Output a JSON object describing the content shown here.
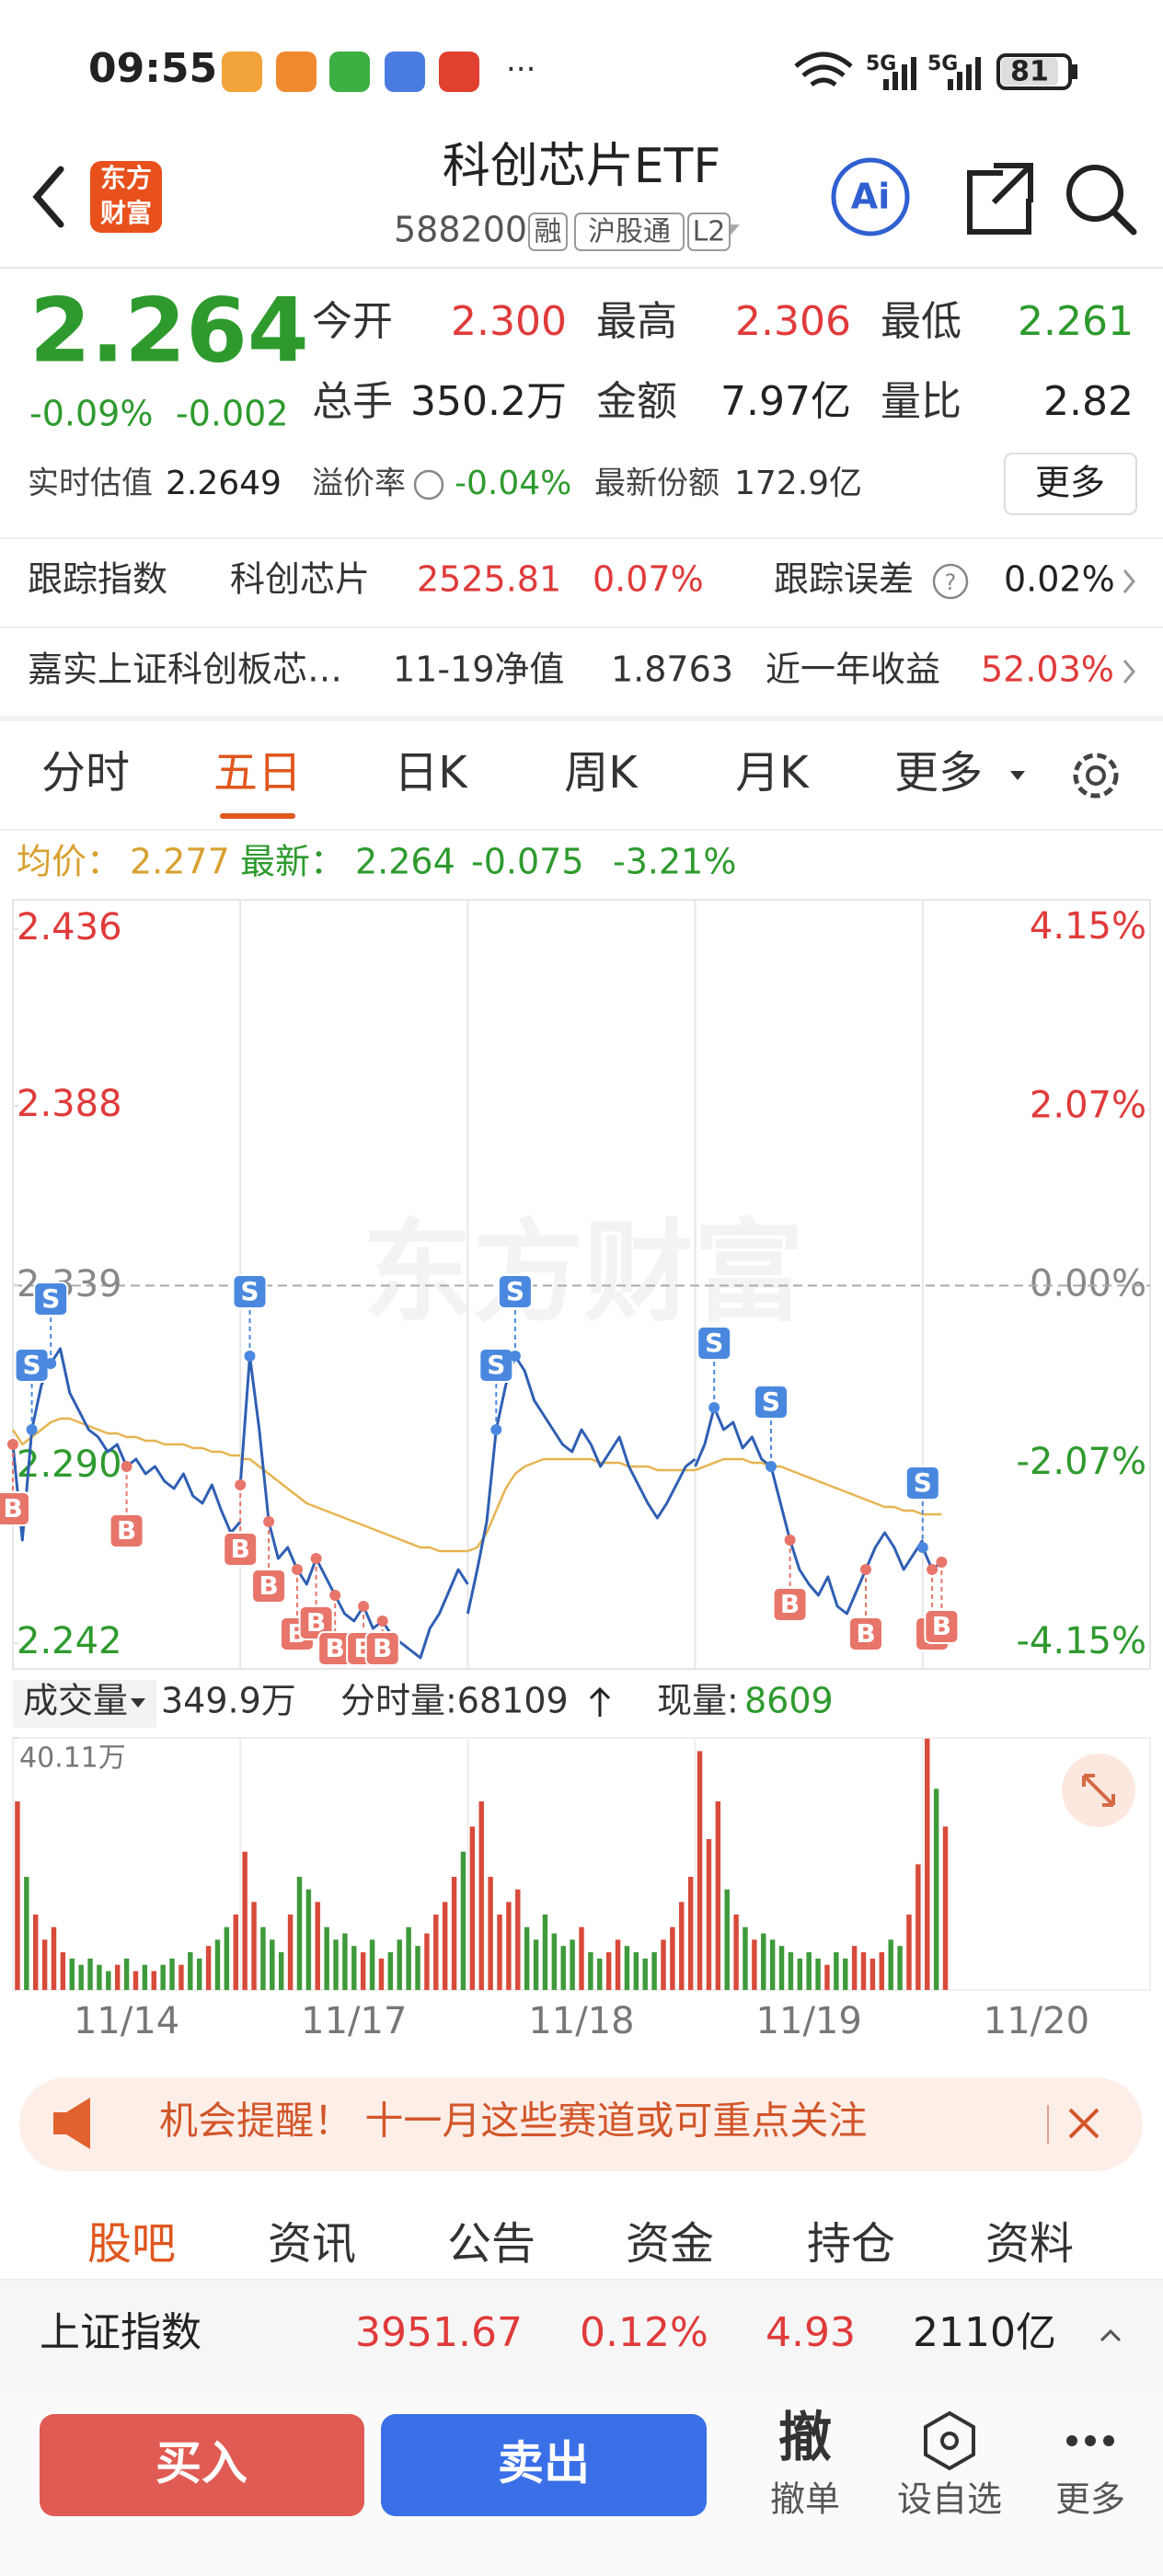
{
  "status_bar": {
    "time": "09:55",
    "network": [
      "5G",
      "5G"
    ],
    "battery": "81"
  },
  "header": {
    "logo": [
      "东方",
      "财富"
    ],
    "title": "科创芯片ETF",
    "code": "588200",
    "tags": [
      "融",
      "沪股通",
      "L2"
    ]
  },
  "quote": {
    "price": "2.264",
    "change_pct": "-0.09%",
    "change": "-0.002",
    "stats": [
      {
        "label": "今开",
        "value": "2.300"
      },
      {
        "label": "最高",
        "value": "2.306"
      },
      {
        "label": "最低",
        "value": "2.261"
      },
      {
        "label": "总手",
        "value": "350.2万"
      },
      {
        "label": "金额",
        "value": "7.97亿"
      },
      {
        "label": "量比",
        "value": "2.82"
      }
    ],
    "estimate_label": "实时估值",
    "estimate": "2.2649",
    "premium_label": "溢价率",
    "premium": "-0.04%",
    "shares_label": "最新份额",
    "shares": "172.9亿",
    "more": "更多"
  },
  "tracking": {
    "index_label": "跟踪指数",
    "index_name": "科创芯片",
    "index_value": "2525.81",
    "index_change": "0.07%",
    "error_label": "跟踪误差",
    "error": "0.02%",
    "fund_name": "嘉实上证科创板芯…",
    "nav_label": "11-19净值",
    "nav": "1.8763",
    "return_label": "近一年收益",
    "return": "52.03%"
  },
  "tabs": {
    "items": [
      "分时",
      "五日",
      "日K",
      "周K",
      "月K",
      "更多"
    ],
    "active": 1
  },
  "chart_info": {
    "avg_label": "均价：",
    "avg": "2.277",
    "last_label": "最新：",
    "last": "2.264",
    "change": "-0.075",
    "change_pct": "-3.21%"
  },
  "volume_info": {
    "label": "成交量",
    "total": "349.9万",
    "tick_volume": "分时量:68109",
    "current_label": "现量:",
    "current": "8609"
  },
  "chart_data": {
    "type": "line",
    "watermark": "东方财富",
    "categories": [
      "11/14",
      "11/17",
      "11/18",
      "11/19",
      "11/20"
    ],
    "ylim": [
      2.235,
      2.444
    ],
    "yticks": [
      2.436,
      2.388,
      2.339,
      {
        "value": 2.29,
        "label": "2.290"
      },
      2.242
    ],
    "y2lim": [
      -4.45,
      4.48
    ],
    "y2ticks": [
      {
        "value": 4.15,
        "label": "4.15%"
      },
      {
        "value": 2.07,
        "label": "2.07%"
      },
      {
        "value": 0,
        "label": "0.00%"
      },
      {
        "value": -2.07,
        "label": "-2.07%"
      },
      {
        "value": -4.15,
        "label": "-4.15%"
      }
    ],
    "up_color": "#e03a3a",
    "down_color": "#2e9a2e",
    "price": {
      "color": "#2f5fb3",
      "values": [
        [
          2.296,
          2.27,
          2.3,
          2.312,
          2.318,
          2.322,
          2.31,
          2.305,
          2.3,
          2.298,
          2.294,
          2.296,
          2.29,
          2.292,
          2.288,
          2.29,
          2.286,
          2.284,
          2.288,
          2.282,
          2.28,
          2.285,
          2.278,
          2.272,
          2.275
        ],
        [
          2.285,
          2.32,
          2.3,
          2.275,
          2.265,
          2.268,
          2.262,
          2.258,
          2.265,
          2.26,
          2.255,
          2.25,
          2.248,
          2.252,
          2.246,
          2.248,
          2.244,
          2.242,
          2.24,
          2.238,
          2.246,
          2.25,
          2.256,
          2.262,
          2.258
        ],
        [
          2.25,
          2.262,
          2.275,
          2.3,
          2.312,
          2.32,
          2.316,
          2.308,
          2.304,
          2.3,
          2.296,
          2.294,
          2.3,
          2.296,
          2.29,
          2.294,
          2.298,
          2.29,
          2.285,
          2.28,
          2.276,
          2.28,
          2.285,
          2.29,
          2.292
        ],
        [
          2.29,
          2.296,
          2.306,
          2.3,
          2.302,
          2.295,
          2.298,
          2.292,
          2.29,
          2.28,
          2.27,
          2.262,
          2.258,
          2.255,
          2.26,
          2.252,
          2.25,
          2.256,
          2.262,
          2.268,
          2.272,
          2.268,
          2.262,
          2.266,
          2.27
        ],
        [
          2.268,
          2.262,
          2.264,
          null,
          null,
          null,
          null,
          null,
          null,
          null,
          null,
          null,
          null,
          null,
          null,
          null,
          null,
          null,
          null,
          null,
          null,
          null,
          null,
          null,
          null
        ]
      ]
    },
    "avg_price": {
      "color": "#e6b450",
      "values": [
        [
          2.3,
          2.296,
          2.298,
          2.3,
          2.302,
          2.303,
          2.303,
          2.302,
          2.301,
          2.3,
          2.299,
          2.299,
          2.298,
          2.298,
          2.297,
          2.297,
          2.296,
          2.296,
          2.296,
          2.295,
          2.295,
          2.294,
          2.294,
          2.293,
          2.293
        ],
        [
          2.292,
          2.292,
          2.29,
          2.288,
          2.286,
          2.284,
          2.282,
          2.28,
          2.279,
          2.278,
          2.277,
          2.276,
          2.275,
          2.274,
          2.273,
          2.272,
          2.271,
          2.27,
          2.269,
          2.268,
          2.268,
          2.267,
          2.267,
          2.267,
          2.267
        ],
        [
          2.267,
          2.268,
          2.272,
          2.278,
          2.284,
          2.288,
          2.29,
          2.291,
          2.292,
          2.292,
          2.292,
          2.292,
          2.292,
          2.292,
          2.291,
          2.291,
          2.291,
          2.29,
          2.29,
          2.29,
          2.289,
          2.289,
          2.289,
          2.289,
          2.289
        ],
        [
          2.289,
          2.29,
          2.291,
          2.292,
          2.292,
          2.292,
          2.291,
          2.291,
          2.29,
          2.29,
          2.289,
          2.288,
          2.287,
          2.286,
          2.285,
          2.284,
          2.283,
          2.282,
          2.281,
          2.28,
          2.279,
          2.279,
          2.278,
          2.278,
          2.277
        ],
        [
          2.277,
          2.277,
          2.277,
          null,
          null,
          null,
          null,
          null,
          null,
          null,
          null,
          null,
          null,
          null,
          null,
          null,
          null,
          null,
          null,
          null,
          null,
          null,
          null,
          null,
          null
        ]
      ]
    },
    "trades": [
      [
        "B",
        null,
        "S",
        null,
        "S",
        null,
        null,
        null,
        null,
        null,
        null,
        null,
        "B",
        null,
        null,
        null,
        null,
        null,
        null,
        null,
        null,
        null,
        null,
        null,
        null
      ],
      [
        "B",
        "S",
        null,
        "B",
        null,
        null,
        "B",
        null,
        "B",
        null,
        "B",
        null,
        null,
        "B",
        null,
        "B",
        null,
        null,
        null,
        null,
        null,
        null,
        null,
        null,
        null
      ],
      [
        null,
        null,
        null,
        "S",
        null,
        "S",
        null,
        null,
        null,
        null,
        null,
        null,
        null,
        null,
        null,
        null,
        null,
        null,
        null,
        null,
        null,
        null,
        null,
        null,
        null
      ],
      [
        null,
        null,
        "S",
        null,
        null,
        null,
        null,
        null,
        "S",
        null,
        "B",
        null,
        null,
        null,
        null,
        null,
        null,
        null,
        "B",
        null,
        null,
        null,
        null,
        null,
        null
      ],
      [
        "S",
        "B",
        "B",
        null,
        null,
        null,
        null,
        null,
        null,
        null,
        null,
        null,
        null,
        null,
        null,
        null,
        null,
        null,
        null,
        null,
        null,
        null,
        null,
        null,
        null
      ]
    ],
    "volume": {
      "ylim": [
        0,
        40.11
      ],
      "yticks": [
        {
          "value": 40.11,
          "label": "40.11万"
        }
      ],
      "values": [
        [
          30,
          18,
          12,
          8,
          10,
          6,
          5,
          4,
          5,
          4,
          3,
          4,
          5,
          3,
          4,
          3,
          4,
          5,
          4,
          6,
          5,
          7,
          8,
          10,
          12
        ],
        [
          22,
          14,
          10,
          8,
          6,
          12,
          18,
          16,
          14,
          10,
          8,
          9,
          7,
          6,
          8,
          5,
          6,
          8,
          10,
          7,
          9,
          12,
          14,
          18,
          22
        ],
        [
          26,
          30,
          18,
          12,
          14,
          16,
          10,
          8,
          12,
          9,
          7,
          8,
          10,
          6,
          5,
          6,
          8,
          7,
          6,
          5,
          6,
          8,
          10,
          14,
          18
        ],
        [
          38,
          24,
          30,
          16,
          12,
          10,
          8,
          9,
          8,
          7,
          6,
          5,
          6,
          5,
          4,
          6,
          5,
          7,
          6,
          5,
          6,
          8,
          7,
          12,
          20
        ],
        [
          40,
          32,
          26,
          null,
          null,
          null,
          null,
          null,
          null,
          null,
          null,
          null,
          null,
          null,
          null,
          null,
          null,
          null,
          null,
          null,
          null,
          null,
          null,
          null,
          null
        ]
      ]
    }
  },
  "banner": {
    "text": "机会提醒！ 十一月这些赛道或可重点关注"
  },
  "bottom_tabs": {
    "items": [
      "股吧",
      "资讯",
      "公告",
      "资金",
      "持仓",
      "资料"
    ],
    "active": 0
  },
  "index_bar": {
    "name": "上证指数",
    "value": "3951.67",
    "change_pct": "0.12%",
    "change": "4.93",
    "turnover": "2110亿"
  },
  "actions": {
    "buy": "买入",
    "sell": "卖出",
    "cancel_icon": "撤",
    "cancel": "撤单",
    "watch": "设自选",
    "more": "更多"
  }
}
